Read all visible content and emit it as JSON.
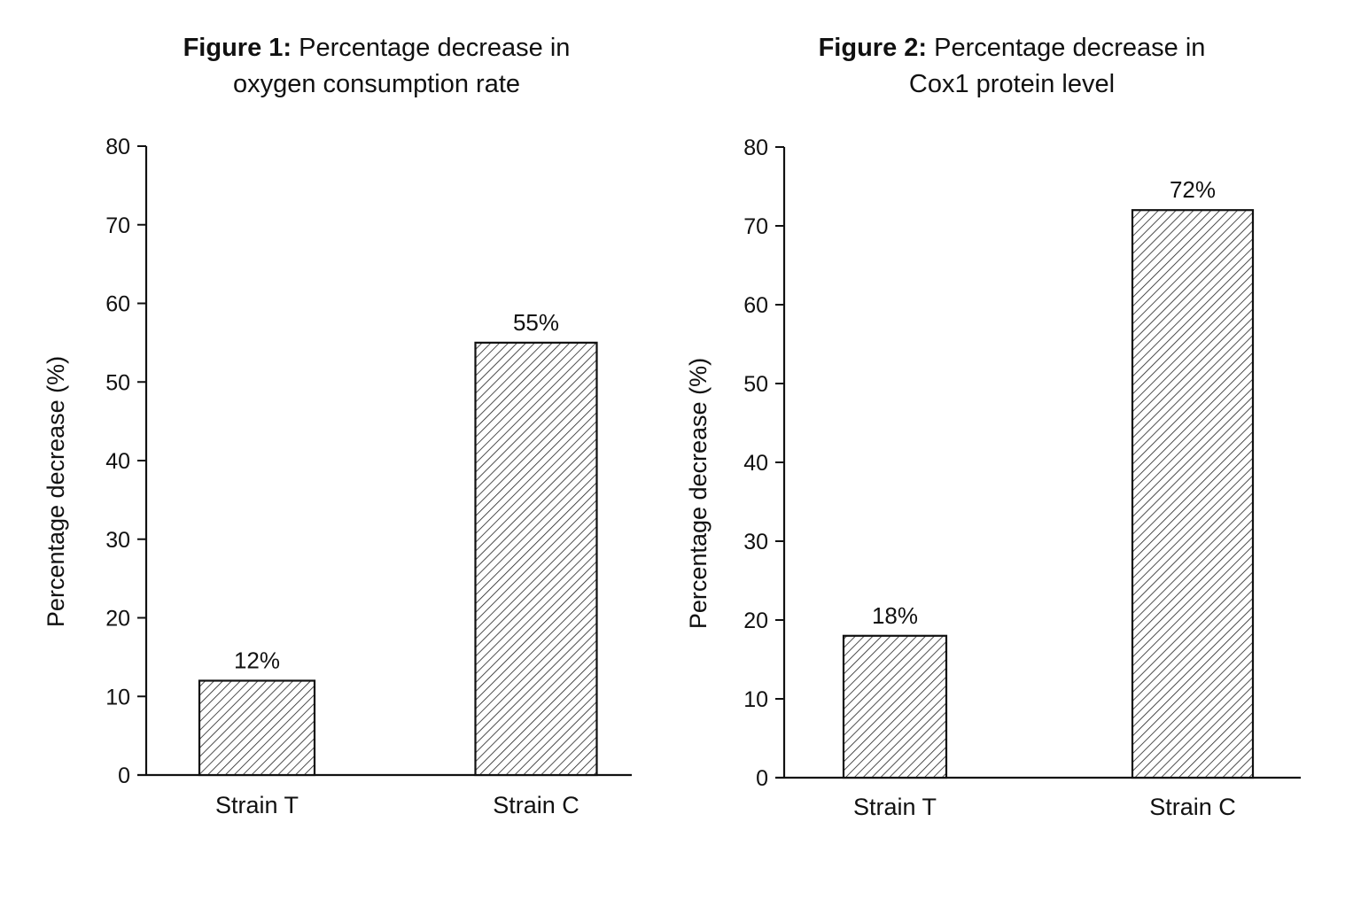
{
  "chart_data": [
    {
      "type": "bar",
      "title_label": "Figure 1:",
      "title_text": "Percentage decrease in",
      "title_line2": "oxygen consumption rate",
      "xlabel": "",
      "ylabel": "Percentage decrease (%)",
      "ylim": [
        0,
        80
      ],
      "yticks": [
        "0",
        "10",
        "20",
        "30",
        "40",
        "50",
        "60",
        "70",
        "80"
      ],
      "categories": [
        "Strain T",
        "Strain C"
      ],
      "values": [
        12,
        55
      ],
      "value_labels": [
        "12%",
        "55%"
      ],
      "bar_fill": "hatched",
      "grid": false,
      "legend": "none"
    },
    {
      "type": "bar",
      "title_label": "Figure 2:",
      "title_text": "Percentage decrease in",
      "title_line2": "Cox1 protein level",
      "xlabel": "",
      "ylabel": "Percentage decrease (%)",
      "ylim": [
        0,
        80
      ],
      "yticks": [
        "0",
        "10",
        "20",
        "30",
        "40",
        "50",
        "60",
        "70",
        "80"
      ],
      "categories": [
        "Strain T",
        "Strain C"
      ],
      "values": [
        18,
        72
      ],
      "value_labels": [
        "18%",
        "72%"
      ],
      "bar_fill": "hatched",
      "grid": false,
      "legend": "none"
    }
  ],
  "colors": {
    "ink": "#111111",
    "background": "#ffffff"
  }
}
